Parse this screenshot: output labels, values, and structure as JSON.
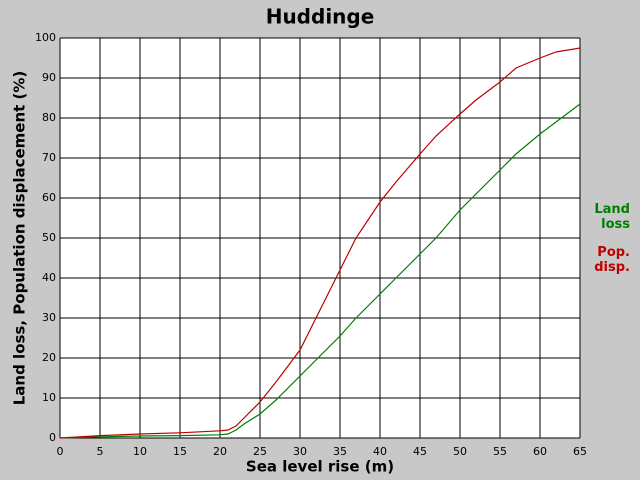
{
  "chart_data": {
    "type": "line",
    "title": "Huddinge",
    "x_label": "Sea level rise (m)",
    "y_label": "Land loss, Population displacement (%)",
    "x": [
      0,
      5,
      10,
      15,
      20,
      21,
      22,
      23,
      25,
      27,
      30,
      32,
      35,
      37,
      40,
      42,
      45,
      47,
      50,
      52,
      55,
      57,
      60,
      62,
      65
    ],
    "series": [
      {
        "name": "Land loss",
        "color": "#008000",
        "values": [
          0,
          0.3,
          0.5,
          0.6,
          0.8,
          1,
          2,
          3.5,
          6,
          9.5,
          15.5,
          19.5,
          25.5,
          30,
          36,
          40,
          46,
          50,
          57,
          61,
          67,
          71,
          76,
          79,
          83.5
        ]
      },
      {
        "name": "Pop. disp.",
        "color": "#c00000",
        "values": [
          0,
          0.6,
          1,
          1.3,
          1.8,
          2,
          3,
          5,
          9,
          14,
          22,
          30,
          42,
          50,
          59,
          64,
          71,
          75.5,
          81,
          84.5,
          89,
          92.5,
          95,
          96.5,
          97.5
        ]
      }
    ],
    "xlim": [
      0,
      65
    ],
    "xticks": [
      0,
      5,
      10,
      15,
      20,
      25,
      30,
      35,
      40,
      45,
      50,
      55,
      60,
      65
    ],
    "ylim": [
      0,
      100
    ],
    "yticks": [
      0,
      10,
      20,
      30,
      40,
      50,
      60,
      70,
      80,
      90,
      100
    ],
    "grid": true
  }
}
